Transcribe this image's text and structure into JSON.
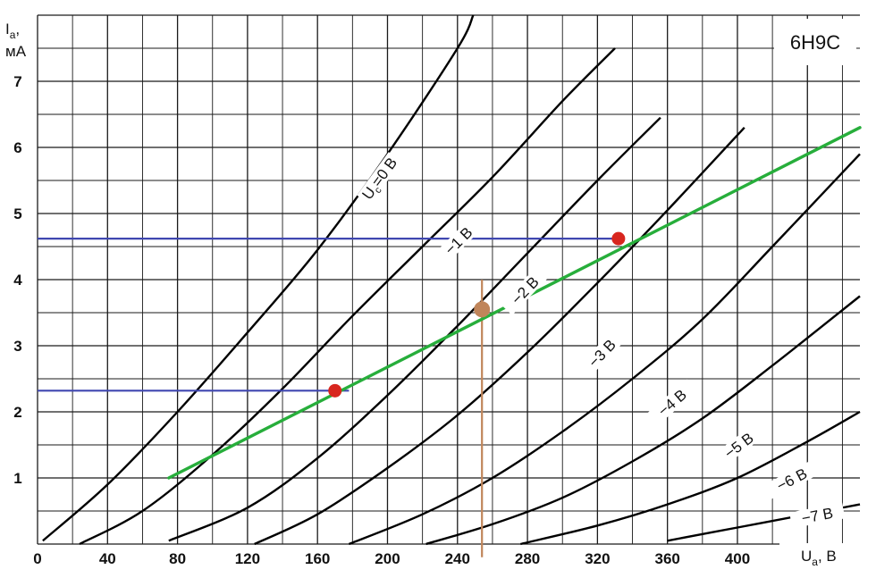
{
  "chart_data": {
    "type": "line",
    "title": "6Н9С",
    "xlabel": "U",
    "xlabel_sub": "а",
    "xlabel_unit": ", В",
    "ylabel": "I",
    "ylabel_sub": "а",
    "ylabel_comma": ",",
    "yunit": "мА",
    "xlim": [
      0,
      470
    ],
    "ylim": [
      0,
      8
    ],
    "x_ticks": [
      0,
      40,
      80,
      120,
      160,
      200,
      240,
      280,
      320,
      360,
      400
    ],
    "y_ticks": [
      1,
      2,
      3,
      4,
      5,
      6,
      7
    ],
    "grid": true,
    "series": [
      {
        "name": "Uс=0 В",
        "label": "U",
        "label_sub": "c",
        "label_rest": "=0 В",
        "label_at": [
          197,
          5.5
        ],
        "points": [
          [
            3,
            0.05
          ],
          [
            40,
            0.9
          ],
          [
            80,
            2.0
          ],
          [
            120,
            3.2
          ],
          [
            160,
            4.45
          ],
          [
            200,
            5.9
          ],
          [
            240,
            7.5
          ],
          [
            249,
            8.0
          ]
        ]
      },
      {
        "name": "-1 В",
        "label": "−1 В",
        "label_at": [
          242,
          4.55
        ],
        "points": [
          [
            24,
            0.0
          ],
          [
            60,
            0.5
          ],
          [
            100,
            1.35
          ],
          [
            140,
            2.35
          ],
          [
            180,
            3.45
          ],
          [
            220,
            4.5
          ],
          [
            260,
            5.55
          ],
          [
            300,
            6.7
          ],
          [
            330,
            7.5
          ]
        ]
      },
      {
        "name": "-2 В",
        "label": "−2 В",
        "label_at": [
          280,
          3.8
        ],
        "points": [
          [
            75,
            0.05
          ],
          [
            120,
            0.55
          ],
          [
            160,
            1.3
          ],
          [
            200,
            2.25
          ],
          [
            240,
            3.3
          ],
          [
            280,
            4.4
          ],
          [
            320,
            5.5
          ],
          [
            356,
            6.45
          ]
        ]
      },
      {
        "name": "-3 В",
        "label": "−3 В",
        "label_at": [
          324,
          2.85
        ],
        "points": [
          [
            124,
            0.0
          ],
          [
            160,
            0.45
          ],
          [
            200,
            1.15
          ],
          [
            240,
            1.95
          ],
          [
            280,
            2.9
          ],
          [
            320,
            3.95
          ],
          [
            360,
            5.05
          ],
          [
            404,
            6.3
          ]
        ]
      },
      {
        "name": "-4 В",
        "label": "−4 В",
        "label_at": [
          364,
          2.1
        ],
        "points": [
          [
            178,
            0.0
          ],
          [
            220,
            0.45
          ],
          [
            260,
            1.0
          ],
          [
            300,
            1.7
          ],
          [
            340,
            2.5
          ],
          [
            380,
            3.4
          ],
          [
            420,
            4.5
          ],
          [
            470,
            5.9
          ]
        ]
      },
      {
        "name": "-5 В",
        "label": "−5 В",
        "label_at": [
          402,
          1.45
        ],
        "points": [
          [
            222,
            0.0
          ],
          [
            260,
            0.3
          ],
          [
            300,
            0.7
          ],
          [
            340,
            1.25
          ],
          [
            380,
            1.9
          ],
          [
            420,
            2.7
          ],
          [
            470,
            3.75
          ]
        ]
      },
      {
        "name": "-6 В",
        "label": "−6 В",
        "label_at": [
          432,
          0.93
        ],
        "points": [
          [
            276,
            0.0
          ],
          [
            320,
            0.28
          ],
          [
            360,
            0.6
          ],
          [
            400,
            1.0
          ],
          [
            440,
            1.55
          ],
          [
            470,
            2.0
          ]
        ]
      },
      {
        "name": "-7 В",
        "label": "−7 В",
        "label_at": [
          446,
          0.38
        ],
        "points": [
          [
            360,
            0.05
          ],
          [
            400,
            0.25
          ],
          [
            440,
            0.45
          ],
          [
            470,
            0.6
          ]
        ]
      }
    ],
    "load_line": {
      "color": "#27ae3b",
      "points": [
        [
          75,
          1.0
        ],
        [
          470,
          6.3
        ]
      ]
    },
    "reference_lines": [
      {
        "color": "#3f47b0",
        "x_from": 0,
        "x_to": 178,
        "y": 2.32
      },
      {
        "color": "#3f47b0",
        "x_from": 0,
        "x_to": 332,
        "y": 4.62
      }
    ],
    "operating_line": {
      "color": "#c0855a",
      "x": 254,
      "y_from": -0.2,
      "y_to": 4.0
    },
    "markers": [
      {
        "kind": "red",
        "x": 170,
        "y": 2.32,
        "color": "#d8261f"
      },
      {
        "kind": "red",
        "x": 332,
        "y": 4.62,
        "color": "#d8261f"
      },
      {
        "kind": "operating",
        "x": 254,
        "y": 3.55,
        "color": "#c0855a"
      }
    ]
  }
}
